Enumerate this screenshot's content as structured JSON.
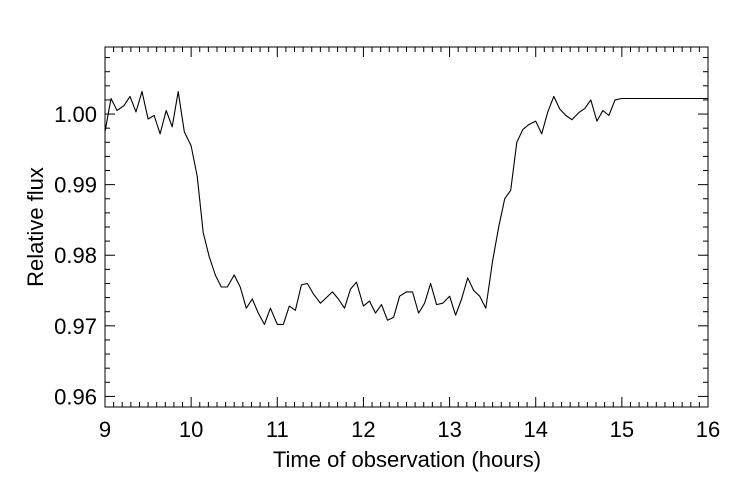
{
  "chart_data": {
    "type": "line",
    "title": "",
    "xlabel": "Time of observation (hours)",
    "ylabel": "Relative flux",
    "xlim": [
      9,
      16
    ],
    "ylim": [
      0.9585,
      1.0095
    ],
    "x_ticks": [
      9,
      10,
      11,
      12,
      13,
      14,
      15,
      16
    ],
    "x_tick_labels": [
      "9",
      "10",
      "11",
      "12",
      "13",
      "14",
      "15",
      "16"
    ],
    "y_ticks": [
      0.96,
      0.97,
      0.98,
      0.99,
      1.0
    ],
    "y_tick_labels": [
      "0.96",
      "0.97",
      "0.98",
      "0.99",
      "1.00"
    ],
    "grid": false,
    "legend": "none",
    "line_color": "#000000",
    "series": [
      {
        "x": [
          9.0,
          9.07,
          9.14,
          9.22,
          9.29,
          9.36,
          9.43,
          9.5,
          9.57,
          9.64,
          9.71,
          9.78,
          9.85,
          9.92,
          10.0,
          10.07,
          10.14,
          10.21,
          10.28,
          10.35,
          10.42,
          10.5,
          10.57,
          10.64,
          10.71,
          10.78,
          10.85,
          10.92,
          11.0,
          11.07,
          11.14,
          11.21,
          11.28,
          11.35,
          11.42,
          11.5,
          11.57,
          11.64,
          11.71,
          11.78,
          11.85,
          11.92,
          12.0,
          12.07,
          12.14,
          12.21,
          12.28,
          12.35,
          12.42,
          12.5,
          12.57,
          12.64,
          12.71,
          12.78,
          12.85,
          12.92,
          13.0,
          13.07,
          13.14,
          13.21,
          13.28,
          13.35,
          13.42,
          13.5,
          13.57,
          13.64,
          13.71,
          13.78,
          13.85,
          13.92,
          14.0,
          14.07,
          14.14,
          14.21,
          14.28,
          14.35,
          14.42,
          14.5,
          14.57,
          14.64,
          14.71,
          14.78,
          14.85,
          14.92,
          15.0,
          15.07,
          15.14,
          15.21,
          15.28,
          15.35,
          15.42,
          15.5,
          15.57,
          15.64,
          15.71,
          15.78,
          15.85,
          15.92,
          16.0
        ],
        "y": [
          0.9975,
          1.0022,
          1.0005,
          1.0012,
          1.0025,
          1.0003,
          1.0032,
          0.9993,
          0.9998,
          0.9972,
          1.0005,
          0.9982,
          1.0032,
          0.9975,
          0.9955,
          0.9912,
          0.9832,
          0.9798,
          0.9772,
          0.9755,
          0.9755,
          0.9772,
          0.9755,
          0.9725,
          0.9738,
          0.9718,
          0.9702,
          0.9725,
          0.9702,
          0.9702,
          0.9728,
          0.9722,
          0.9758,
          0.976,
          0.9745,
          0.9732,
          0.974,
          0.9748,
          0.9738,
          0.9725,
          0.9752,
          0.9762,
          0.9728,
          0.9735,
          0.9718,
          0.973,
          0.9708,
          0.9712,
          0.9742,
          0.9748,
          0.9748,
          0.9718,
          0.9732,
          0.976,
          0.973,
          0.9732,
          0.9742,
          0.9715,
          0.9738,
          0.9768,
          0.975,
          0.9742,
          0.9725,
          0.9792,
          0.984,
          0.988,
          0.9892,
          0.996,
          0.9978,
          0.9985,
          0.999,
          0.9972,
          1.0003,
          1.0025,
          1.0007,
          0.9998,
          0.9992,
          1.0002,
          1.0008,
          1.002,
          0.999,
          1.0005,
          0.9998,
          1.002,
          1.0022,
          1.0022,
          1.0022,
          1.0022,
          1.0022,
          1.0022,
          1.0022,
          1.0022,
          1.0022,
          1.0022,
          1.0022,
          1.0022,
          1.0022,
          1.0022,
          1.0022
        ]
      }
    ]
  }
}
